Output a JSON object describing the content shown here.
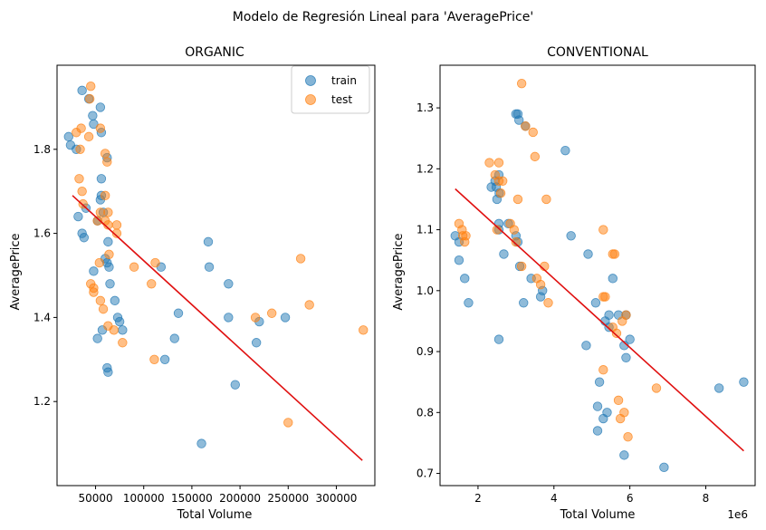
{
  "suptitle": "Modelo de Regresión Lineal para 'AveragePrice'",
  "colors": {
    "train": "#1f77b4",
    "test": "#ff7f0e",
    "fit": "#e01010"
  },
  "chart_data": [
    {
      "type": "scatter",
      "title": "ORGANIC",
      "xlabel": "Total Volume",
      "ylabel": "AveragePrice",
      "xlim": [
        10000,
        340000
      ],
      "ylim": [
        1.0,
        2.0
      ],
      "xticks": [
        50000,
        100000,
        150000,
        200000,
        250000,
        300000
      ],
      "xtick_labels": [
        "50000",
        "100000",
        "150000",
        "200000",
        "250000",
        "300000"
      ],
      "yticks": [
        1.2,
        1.4,
        1.6,
        1.8
      ],
      "ytick_labels": [
        "1.2",
        "1.4",
        "1.6",
        "1.8"
      ],
      "x_multiplier": "",
      "legend": {
        "position": "top-right",
        "entries": [
          "train",
          "test"
        ]
      },
      "series": [
        {
          "name": "train",
          "points": [
            [
              36000,
              1.94
            ],
            [
              43000,
              1.92
            ],
            [
              55000,
              1.9
            ],
            [
              47000,
              1.88
            ],
            [
              48000,
              1.86
            ],
            [
              56000,
              1.84
            ],
            [
              22000,
              1.83
            ],
            [
              24000,
              1.81
            ],
            [
              30000,
              1.8
            ],
            [
              62000,
              1.78
            ],
            [
              56000,
              1.73
            ],
            [
              56000,
              1.69
            ],
            [
              55000,
              1.68
            ],
            [
              40000,
              1.66
            ],
            [
              58000,
              1.65
            ],
            [
              32000,
              1.64
            ],
            [
              52000,
              1.63
            ],
            [
              36000,
              1.6
            ],
            [
              38000,
              1.59
            ],
            [
              63000,
              1.58
            ],
            [
              60000,
              1.54
            ],
            [
              62000,
              1.53
            ],
            [
              64000,
              1.52
            ],
            [
              48000,
              1.51
            ],
            [
              65000,
              1.48
            ],
            [
              70000,
              1.44
            ],
            [
              73000,
              1.4
            ],
            [
              75000,
              1.39
            ],
            [
              52000,
              1.35
            ],
            [
              57000,
              1.37
            ],
            [
              78000,
              1.37
            ],
            [
              62000,
              1.28
            ],
            [
              63000,
              1.27
            ],
            [
              118000,
              1.52
            ],
            [
              136000,
              1.41
            ],
            [
              132000,
              1.35
            ],
            [
              122000,
              1.3
            ],
            [
              167000,
              1.58
            ],
            [
              168000,
              1.52
            ],
            [
              188000,
              1.48
            ],
            [
              188000,
              1.4
            ],
            [
              195000,
              1.24
            ],
            [
              160000,
              1.1
            ],
            [
              220000,
              1.39
            ],
            [
              217000,
              1.34
            ],
            [
              247000,
              1.4
            ]
          ]
        },
        {
          "name": "test",
          "points": [
            [
              45000,
              1.95
            ],
            [
              44000,
              1.92
            ],
            [
              35000,
              1.85
            ],
            [
              30000,
              1.84
            ],
            [
              55000,
              1.85
            ],
            [
              43000,
              1.83
            ],
            [
              34000,
              1.8
            ],
            [
              60000,
              1.79
            ],
            [
              62000,
              1.77
            ],
            [
              33000,
              1.73
            ],
            [
              36000,
              1.7
            ],
            [
              60000,
              1.69
            ],
            [
              37000,
              1.67
            ],
            [
              55000,
              1.65
            ],
            [
              63000,
              1.65
            ],
            [
              60000,
              1.63
            ],
            [
              52000,
              1.63
            ],
            [
              63000,
              1.62
            ],
            [
              72000,
              1.62
            ],
            [
              72000,
              1.6
            ],
            [
              64000,
              1.55
            ],
            [
              54000,
              1.53
            ],
            [
              90000,
              1.52
            ],
            [
              112000,
              1.53
            ],
            [
              45000,
              1.48
            ],
            [
              48000,
              1.47
            ],
            [
              48000,
              1.46
            ],
            [
              108000,
              1.48
            ],
            [
              55000,
              1.44
            ],
            [
              58000,
              1.42
            ],
            [
              63000,
              1.38
            ],
            [
              69000,
              1.37
            ],
            [
              78000,
              1.34
            ],
            [
              111000,
              1.3
            ],
            [
              216000,
              1.4
            ],
            [
              233000,
              1.41
            ],
            [
              263000,
              1.54
            ],
            [
              272000,
              1.43
            ],
            [
              250000,
              1.15
            ],
            [
              328000,
              1.37
            ]
          ]
        }
      ],
      "fit_line": [
        [
          26000,
          1.69
        ],
        [
          327000,
          1.06
        ]
      ]
    },
    {
      "type": "scatter",
      "title": "CONVENTIONAL",
      "xlabel": "Total Volume",
      "ylabel": "AveragePrice",
      "xlim": [
        1000000,
        9300000
      ],
      "ylim": [
        0.68,
        1.37
      ],
      "xticks": [
        2000000,
        4000000,
        6000000,
        8000000
      ],
      "xtick_labels": [
        "2",
        "4",
        "6",
        "8"
      ],
      "yticks": [
        0.7,
        0.8,
        0.9,
        1.0,
        1.1,
        1.2,
        1.3
      ],
      "ytick_labels": [
        "0.7",
        "0.8",
        "0.9",
        "1.0",
        "1.1",
        "1.2",
        "1.3"
      ],
      "x_multiplier": "1e6",
      "legend": null,
      "series": [
        {
          "name": "train",
          "points": [
            [
              3000000,
              1.29
            ],
            [
              3050000,
              1.29
            ],
            [
              3080000,
              1.28
            ],
            [
              3250000,
              1.27
            ],
            [
              4300000,
              1.23
            ],
            [
              2550000,
              1.19
            ],
            [
              2450000,
              1.18
            ],
            [
              2480000,
              1.17
            ],
            [
              2350000,
              1.17
            ],
            [
              2560000,
              1.16
            ],
            [
              2500000,
              1.15
            ],
            [
              2550000,
              1.11
            ],
            [
              2550000,
              1.1
            ],
            [
              2800000,
              1.11
            ],
            [
              3000000,
              1.09
            ],
            [
              3050000,
              1.08
            ],
            [
              4450000,
              1.09
            ],
            [
              1400000,
              1.09
            ],
            [
              1500000,
              1.08
            ],
            [
              2680000,
              1.06
            ],
            [
              4900000,
              1.06
            ],
            [
              1500000,
              1.05
            ],
            [
              3100000,
              1.04
            ],
            [
              1650000,
              1.02
            ],
            [
              3400000,
              1.02
            ],
            [
              3700000,
              1.0
            ],
            [
              3650000,
              0.99
            ],
            [
              1750000,
              0.98
            ],
            [
              3200000,
              0.98
            ],
            [
              5100000,
              0.98
            ],
            [
              5550000,
              1.02
            ],
            [
              5350000,
              0.95
            ],
            [
              5450000,
              0.96
            ],
            [
              5700000,
              0.96
            ],
            [
              5900000,
              0.96
            ],
            [
              5450000,
              0.94
            ],
            [
              6000000,
              0.92
            ],
            [
              2550000,
              0.92
            ],
            [
              4850000,
              0.91
            ],
            [
              5850000,
              0.91
            ],
            [
              5200000,
              0.85
            ],
            [
              5900000,
              0.89
            ],
            [
              5150000,
              0.81
            ],
            [
              5400000,
              0.8
            ],
            [
              5300000,
              0.79
            ],
            [
              5150000,
              0.77
            ],
            [
              5850000,
              0.73
            ],
            [
              6900000,
              0.71
            ],
            [
              8350000,
              0.84
            ],
            [
              9000000,
              0.85
            ]
          ]
        },
        {
          "name": "test",
          "points": [
            [
              3150000,
              1.34
            ],
            [
              3250000,
              1.27
            ],
            [
              3450000,
              1.26
            ],
            [
              3500000,
              1.22
            ],
            [
              2300000,
              1.21
            ],
            [
              2550000,
              1.21
            ],
            [
              2450000,
              1.19
            ],
            [
              2550000,
              1.18
            ],
            [
              2650000,
              1.18
            ],
            [
              2600000,
              1.16
            ],
            [
              3050000,
              1.15
            ],
            [
              3800000,
              1.15
            ],
            [
              1500000,
              1.11
            ],
            [
              2850000,
              1.11
            ],
            [
              1580000,
              1.1
            ],
            [
              2500000,
              1.1
            ],
            [
              2950000,
              1.1
            ],
            [
              5300000,
              1.1
            ],
            [
              1600000,
              1.09
            ],
            [
              1680000,
              1.09
            ],
            [
              1650000,
              1.08
            ],
            [
              3000000,
              1.08
            ],
            [
              5550000,
              1.06
            ],
            [
              5600000,
              1.06
            ],
            [
              3150000,
              1.04
            ],
            [
              3750000,
              1.04
            ],
            [
              3550000,
              1.02
            ],
            [
              3650000,
              1.01
            ],
            [
              5300000,
              0.99
            ],
            [
              5350000,
              0.99
            ],
            [
              3850000,
              0.98
            ],
            [
              5800000,
              0.95
            ],
            [
              5550000,
              0.94
            ],
            [
              5650000,
              0.93
            ],
            [
              5900000,
              0.96
            ],
            [
              5300000,
              0.87
            ],
            [
              5700000,
              0.82
            ],
            [
              6700000,
              0.84
            ],
            [
              5750000,
              0.79
            ],
            [
              5850000,
              0.8
            ],
            [
              5950000,
              0.76
            ]
          ]
        }
      ],
      "fit_line": [
        [
          1400000,
          1.167
        ],
        [
          9000000,
          0.737
        ]
      ]
    }
  ]
}
